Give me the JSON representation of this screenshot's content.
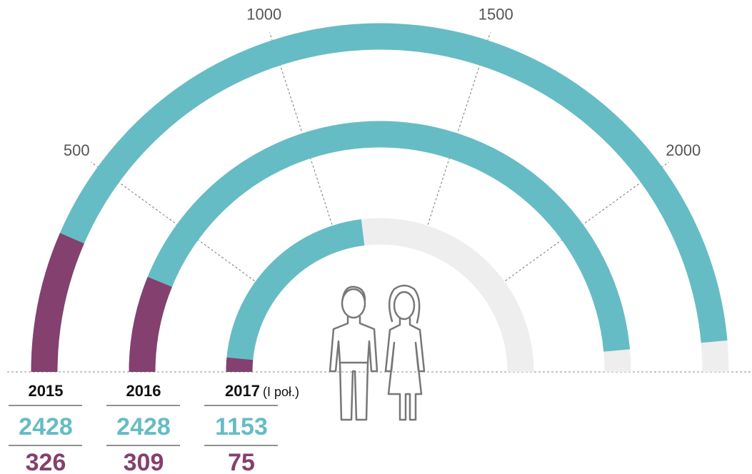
{
  "chart_data": {
    "type": "radial_bar",
    "categories": [
      "2015",
      "2016",
      "2017"
    ],
    "category_note": "(I poł.)",
    "series": [
      {
        "color": "#66bcc4",
        "values": [
          2428,
          2428,
          1153
        ]
      },
      {
        "color": "#84406e",
        "values": [
          326,
          309,
          75
        ]
      }
    ],
    "xlim": [
      0,
      2500
    ],
    "xticks": [
      500,
      1000,
      1500,
      2000
    ],
    "grid": true
  }
}
